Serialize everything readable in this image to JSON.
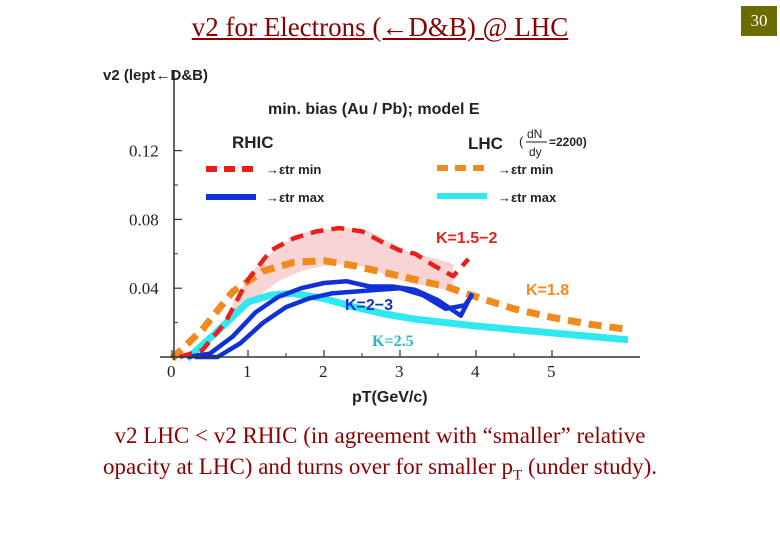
{
  "slide": {
    "title": "v2 for Electrons (←D&B) @ LHC",
    "page_number": "30",
    "caption_line1": "v2 LHC < v2 RHIC (in agreement with “smaller” relative",
    "caption_line2_a": "opacity at LHC) and turns over for smaller p",
    "caption_line2_sub": "T",
    "caption_line2_b": " (under study)."
  },
  "chart_data": {
    "type": "line",
    "ylabel": "v2 (lept←D&B)",
    "xlabel": "pT(GeV/c)",
    "xlim": [
      0,
      6
    ],
    "ylim": [
      -0.002,
      0.145
    ],
    "x_ticks": [
      "0",
      "1",
      "2",
      "3",
      "4",
      "5"
    ],
    "y_ticks": [
      "0.04",
      "0.08",
      "0.12"
    ],
    "header": "min. bias (Au / Pb); model E",
    "legend": {
      "rhic_title": "RHIC",
      "lhc_title": "LHC (dN/dy =2200)",
      "lhc_dndy_num": "dN",
      "lhc_dndy_den": "dy",
      "lhc_dndy_val": "=2200)",
      "lhc_paren": "(",
      "entry_min": "→εtr min",
      "entry_max": "→εtr max"
    },
    "annotations": {
      "k_rhic_min": "K=1.5−2",
      "k_rhic_max": "K=2−3",
      "k_lhc_min": "K=1.8",
      "k_lhc_max": "K=2.5"
    },
    "colors": {
      "rhic_min": "#e8201c",
      "rhic_max": "#1030d8",
      "lhc_min": "#f08a1c",
      "lhc_max": "#30e8f0",
      "band": "#f9d4d4",
      "title": "#8b0000"
    },
    "band": {
      "x": [
        0.8,
        1.1,
        1.4,
        1.7,
        2.0,
        2.3,
        2.6,
        2.9,
        3.1,
        3.4,
        3.7
      ],
      "upper": [
        0.032,
        0.052,
        0.064,
        0.072,
        0.074,
        0.075,
        0.073,
        0.066,
        0.061,
        0.058,
        0.054
      ],
      "lower": [
        0.022,
        0.034,
        0.044,
        0.05,
        0.053,
        0.054,
        0.052,
        0.046,
        0.043,
        0.041,
        0.038
      ]
    },
    "series": [
      {
        "key": "rhic_min",
        "style": "dashed",
        "x": [
          0.1,
          0.4,
          0.7,
          1.0,
          1.3,
          1.6,
          1.9,
          2.2,
          2.5,
          2.8,
          3.0,
          3.2,
          3.45,
          3.7,
          3.9
        ],
        "y": [
          0.0,
          0.004,
          0.02,
          0.045,
          0.062,
          0.069,
          0.073,
          0.075,
          0.073,
          0.066,
          0.062,
          0.06,
          0.053,
          0.047,
          0.057
        ]
      },
      {
        "key": "rhic_max",
        "style": "solid",
        "x": [
          0.2,
          0.5,
          0.8,
          1.1,
          1.4,
          1.7,
          2.0,
          2.3,
          2.6,
          2.9,
          3.2,
          3.5,
          3.8,
          3.95
        ],
        "y": [
          0.0,
          0.002,
          0.012,
          0.026,
          0.035,
          0.04,
          0.043,
          0.044,
          0.041,
          0.041,
          0.039,
          0.033,
          0.024,
          0.037
        ]
      },
      {
        "key": "rhic_max_b",
        "style": "solid",
        "x": [
          0.3,
          0.6,
          0.9,
          1.2,
          1.5,
          1.8,
          2.1,
          2.4,
          2.7,
          3.0,
          3.3,
          3.6,
          3.85,
          3.95
        ],
        "y": [
          0.0,
          0.0,
          0.008,
          0.02,
          0.029,
          0.034,
          0.037,
          0.038,
          0.039,
          0.04,
          0.036,
          0.028,
          0.03,
          0.036
        ]
      },
      {
        "key": "lhc_min",
        "style": "dashed",
        "x": [
          0.0,
          0.4,
          0.8,
          1.2,
          1.6,
          2.0,
          2.4,
          2.8,
          3.2,
          3.6,
          4.0,
          4.5,
          5.0,
          5.5,
          6.0
        ],
        "y": [
          -0.001,
          0.016,
          0.038,
          0.05,
          0.055,
          0.056,
          0.053,
          0.049,
          0.045,
          0.041,
          0.035,
          0.028,
          0.023,
          0.019,
          0.016
        ]
      },
      {
        "key": "lhc_max",
        "style": "solid",
        "x": [
          0.2,
          0.6,
          1.0,
          1.3,
          1.6,
          2.0,
          2.4,
          2.8,
          3.2,
          3.6,
          4.0,
          4.5,
          5.0,
          5.5,
          6.0
        ],
        "y": [
          -0.001,
          0.015,
          0.032,
          0.036,
          0.037,
          0.034,
          0.029,
          0.025,
          0.022,
          0.02,
          0.018,
          0.016,
          0.014,
          0.012,
          0.01
        ]
      }
    ]
  }
}
